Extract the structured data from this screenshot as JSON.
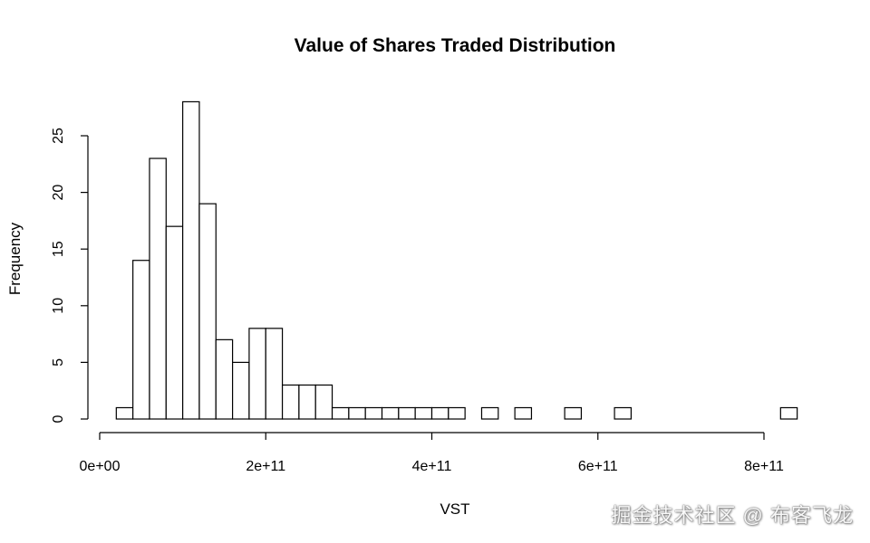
{
  "chart_data": {
    "type": "histogram",
    "title": "Value of Shares Traded Distribution",
    "xlabel": "VST",
    "ylabel": "Frequency",
    "bin_width": 20000000000,
    "bins": [
      {
        "start": 20000000000,
        "count": 1
      },
      {
        "start": 40000000000,
        "count": 14
      },
      {
        "start": 60000000000,
        "count": 23
      },
      {
        "start": 80000000000,
        "count": 17
      },
      {
        "start": 100000000000,
        "count": 28
      },
      {
        "start": 120000000000,
        "count": 19
      },
      {
        "start": 140000000000,
        "count": 7
      },
      {
        "start": 160000000000,
        "count": 5
      },
      {
        "start": 180000000000,
        "count": 8
      },
      {
        "start": 200000000000,
        "count": 8
      },
      {
        "start": 220000000000,
        "count": 3
      },
      {
        "start": 240000000000,
        "count": 3
      },
      {
        "start": 260000000000,
        "count": 3
      },
      {
        "start": 280000000000,
        "count": 1
      },
      {
        "start": 300000000000,
        "count": 1
      },
      {
        "start": 320000000000,
        "count": 1
      },
      {
        "start": 340000000000,
        "count": 1
      },
      {
        "start": 360000000000,
        "count": 1
      },
      {
        "start": 380000000000,
        "count": 1
      },
      {
        "start": 400000000000,
        "count": 1
      },
      {
        "start": 420000000000,
        "count": 1
      },
      {
        "start": 440000000000,
        "count": 0
      },
      {
        "start": 460000000000,
        "count": 1
      },
      {
        "start": 480000000000,
        "count": 0
      },
      {
        "start": 500000000000,
        "count": 1
      },
      {
        "start": 520000000000,
        "count": 0
      },
      {
        "start": 540000000000,
        "count": 0
      },
      {
        "start": 560000000000,
        "count": 1
      },
      {
        "start": 580000000000,
        "count": 0
      },
      {
        "start": 600000000000,
        "count": 0
      },
      {
        "start": 620000000000,
        "count": 1
      },
      {
        "start": 640000000000,
        "count": 0
      },
      {
        "start": 660000000000,
        "count": 0
      },
      {
        "start": 680000000000,
        "count": 0
      },
      {
        "start": 700000000000,
        "count": 0
      },
      {
        "start": 720000000000,
        "count": 0
      },
      {
        "start": 740000000000,
        "count": 0
      },
      {
        "start": 760000000000,
        "count": 0
      },
      {
        "start": 780000000000,
        "count": 0
      },
      {
        "start": 800000000000,
        "count": 0
      },
      {
        "start": 820000000000,
        "count": 1
      }
    ],
    "x_ticks": [
      {
        "value": 0,
        "label": "0e+00"
      },
      {
        "value": 200000000000,
        "label": "2e+11"
      },
      {
        "value": 400000000000,
        "label": "4e+11"
      },
      {
        "value": 600000000000,
        "label": "6e+11"
      },
      {
        "value": 800000000000,
        "label": "8e+11"
      }
    ],
    "y_ticks": [
      {
        "value": 0,
        "label": "0"
      },
      {
        "value": 5,
        "label": "5"
      },
      {
        "value": 10,
        "label": "10"
      },
      {
        "value": 15,
        "label": "15"
      },
      {
        "value": 20,
        "label": "20"
      },
      {
        "value": 25,
        "label": "25"
      }
    ],
    "xlim": [
      0,
      840000000000
    ],
    "ylim": [
      0,
      28
    ],
    "grid": false,
    "legend": null
  },
  "watermark": "掘金技术社区 @ 布客飞龙"
}
